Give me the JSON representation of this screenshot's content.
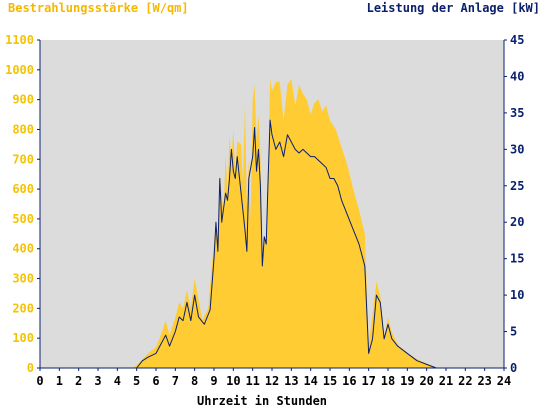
{
  "chart_data": {
    "type": "area",
    "xlabel": "Uhrzeit in Stunden",
    "ylabel_left": "Bestrahlungsstärke [W/qm]",
    "ylabel_right": "Leistung der Anlage [kW]",
    "xlim": [
      0,
      24
    ],
    "ylim_left": [
      0,
      1100
    ],
    "ylim_right": [
      0,
      45
    ],
    "x_ticks": [
      "0",
      "1",
      "2",
      "3",
      "4",
      "5",
      "6",
      "7",
      "8",
      "9",
      "10",
      "11",
      "12",
      "13",
      "14",
      "15",
      "16",
      "17",
      "18",
      "19",
      "20",
      "21",
      "22",
      "23",
      "24"
    ],
    "y_ticks_left": [
      "0",
      "100",
      "200",
      "300",
      "400",
      "500",
      "600",
      "700",
      "800",
      "900",
      "1000",
      "1100"
    ],
    "y_ticks_right": [
      "0",
      "5",
      "10",
      "15",
      "20",
      "25",
      "30",
      "35",
      "40",
      "45"
    ],
    "grid": false,
    "colors": {
      "irradiance_fill": "#ffcc33",
      "power_line": "#0a1f6e",
      "plot_background": "#dcdcdc",
      "axis": "#0a1f6e",
      "left_axis_text": "#f5c300",
      "right_axis_text": "#0a1f6e"
    },
    "series": [
      {
        "name": "Bestrahlungsstärke [W/qm]",
        "style": "area",
        "axis": "left",
        "points": [
          [
            0,
            0
          ],
          [
            4.8,
            0
          ],
          [
            5,
            10
          ],
          [
            5.3,
            30
          ],
          [
            5.6,
            50
          ],
          [
            6,
            70
          ],
          [
            6.3,
            120
          ],
          [
            6.5,
            160
          ],
          [
            6.7,
            110
          ],
          [
            7,
            170
          ],
          [
            7.2,
            220
          ],
          [
            7.4,
            200
          ],
          [
            7.6,
            260
          ],
          [
            7.8,
            200
          ],
          [
            8,
            300
          ],
          [
            8.2,
            230
          ],
          [
            8.4,
            160
          ],
          [
            8.7,
            200
          ],
          [
            8.9,
            350
          ],
          [
            9.0,
            420
          ],
          [
            9.1,
            500
          ],
          [
            9.2,
            400
          ],
          [
            9.3,
            650
          ],
          [
            9.5,
            520
          ],
          [
            9.6,
            720
          ],
          [
            9.7,
            580
          ],
          [
            9.8,
            780
          ],
          [
            9.9,
            700
          ],
          [
            10.0,
            800
          ],
          [
            10.1,
            650
          ],
          [
            10.2,
            760
          ],
          [
            10.4,
            750
          ],
          [
            10.5,
            620
          ],
          [
            10.6,
            880
          ],
          [
            10.7,
            540
          ],
          [
            10.8,
            700
          ],
          [
            10.9,
            500
          ],
          [
            11.0,
            900
          ],
          [
            11.1,
            950
          ],
          [
            11.2,
            760
          ],
          [
            11.3,
            850
          ],
          [
            11.4,
            720
          ],
          [
            11.5,
            360
          ],
          [
            11.6,
            440
          ],
          [
            11.7,
            420
          ],
          [
            11.8,
            620
          ],
          [
            11.9,
            970
          ],
          [
            12.0,
            930
          ],
          [
            12.2,
            960
          ],
          [
            12.4,
            960
          ],
          [
            12.6,
            830
          ],
          [
            12.8,
            950
          ],
          [
            13.0,
            970
          ],
          [
            13.2,
            880
          ],
          [
            13.4,
            950
          ],
          [
            13.6,
            920
          ],
          [
            13.8,
            900
          ],
          [
            14.0,
            850
          ],
          [
            14.2,
            890
          ],
          [
            14.4,
            900
          ],
          [
            14.6,
            860
          ],
          [
            14.8,
            880
          ],
          [
            15.0,
            830
          ],
          [
            15.3,
            800
          ],
          [
            15.6,
            740
          ],
          [
            15.9,
            680
          ],
          [
            16.2,
            600
          ],
          [
            16.5,
            530
          ],
          [
            16.8,
            450
          ],
          [
            17.0,
            80
          ],
          [
            17.2,
            180
          ],
          [
            17.4,
            290
          ],
          [
            17.6,
            240
          ],
          [
            17.8,
            100
          ],
          [
            18.0,
            170
          ],
          [
            18.2,
            120
          ],
          [
            18.5,
            80
          ],
          [
            19.0,
            50
          ],
          [
            19.5,
            30
          ],
          [
            20.0,
            15
          ],
          [
            20.5,
            0
          ],
          [
            24,
            0
          ]
        ]
      },
      {
        "name": "Leistung der Anlage [kW]",
        "style": "line",
        "axis": "right",
        "points": [
          [
            0,
            0
          ],
          [
            5.0,
            0
          ],
          [
            5.3,
            1
          ],
          [
            5.6,
            1.5
          ],
          [
            6.0,
            2
          ],
          [
            6.3,
            3.5
          ],
          [
            6.5,
            4.5
          ],
          [
            6.7,
            3
          ],
          [
            7.0,
            5
          ],
          [
            7.2,
            7
          ],
          [
            7.4,
            6.5
          ],
          [
            7.6,
            9
          ],
          [
            7.8,
            6.5
          ],
          [
            8.0,
            10
          ],
          [
            8.2,
            7
          ],
          [
            8.5,
            6
          ],
          [
            8.8,
            8
          ],
          [
            9.0,
            15
          ],
          [
            9.1,
            20
          ],
          [
            9.2,
            16
          ],
          [
            9.3,
            26
          ],
          [
            9.4,
            20
          ],
          [
            9.5,
            22
          ],
          [
            9.6,
            24
          ],
          [
            9.7,
            23
          ],
          [
            9.8,
            26
          ],
          [
            9.9,
            30
          ],
          [
            10.0,
            27
          ],
          [
            10.1,
            26
          ],
          [
            10.2,
            29
          ],
          [
            10.4,
            24
          ],
          [
            10.6,
            19
          ],
          [
            10.7,
            16
          ],
          [
            10.8,
            26
          ],
          [
            11.0,
            29
          ],
          [
            11.1,
            33
          ],
          [
            11.2,
            27
          ],
          [
            11.3,
            30
          ],
          [
            11.4,
            25
          ],
          [
            11.5,
            14
          ],
          [
            11.6,
            18
          ],
          [
            11.7,
            17
          ],
          [
            11.8,
            26
          ],
          [
            11.9,
            34
          ],
          [
            12.0,
            32
          ],
          [
            12.2,
            30
          ],
          [
            12.4,
            31
          ],
          [
            12.6,
            29
          ],
          [
            12.8,
            32
          ],
          [
            13.0,
            31
          ],
          [
            13.2,
            30
          ],
          [
            13.4,
            29.5
          ],
          [
            13.6,
            30
          ],
          [
            13.8,
            29.5
          ],
          [
            14.0,
            29
          ],
          [
            14.2,
            29
          ],
          [
            14.4,
            28.5
          ],
          [
            14.6,
            28
          ],
          [
            14.8,
            27.5
          ],
          [
            15.0,
            26
          ],
          [
            15.2,
            26
          ],
          [
            15.4,
            25
          ],
          [
            15.6,
            23
          ],
          [
            15.9,
            21
          ],
          [
            16.2,
            19
          ],
          [
            16.5,
            17
          ],
          [
            16.8,
            14
          ],
          [
            17.0,
            2
          ],
          [
            17.2,
            4
          ],
          [
            17.4,
            10
          ],
          [
            17.6,
            9
          ],
          [
            17.8,
            4
          ],
          [
            18.0,
            6
          ],
          [
            18.2,
            4
          ],
          [
            18.5,
            3
          ],
          [
            19.0,
            2
          ],
          [
            19.5,
            1
          ],
          [
            20.0,
            0.5
          ],
          [
            20.5,
            0
          ],
          [
            24,
            0
          ]
        ]
      }
    ]
  }
}
